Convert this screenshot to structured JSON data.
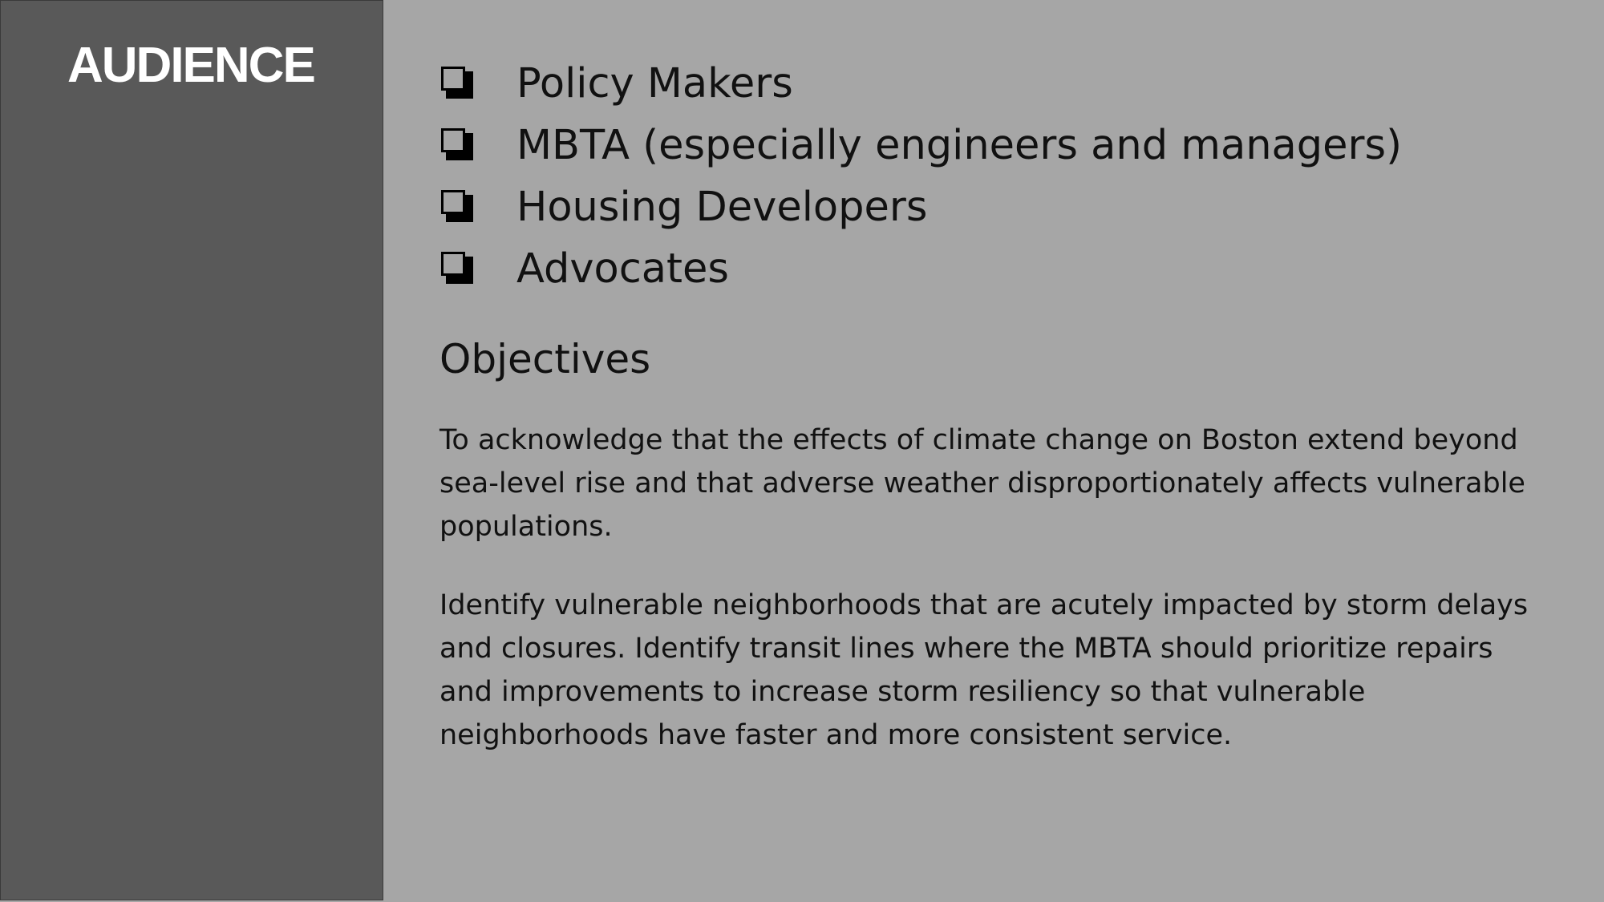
{
  "sidebar": {
    "title": "AUDIENCE"
  },
  "audience": {
    "items": [
      {
        "label": "Policy Makers",
        "icon": "checkbox-icon"
      },
      {
        "label": "MBTA (especially engineers and managers)",
        "icon": "checkbox-icon"
      },
      {
        "label": "Housing Developers",
        "icon": "checkbox-icon"
      },
      {
        "label": "Advocates",
        "icon": "checkbox-icon"
      }
    ]
  },
  "objectives": {
    "heading": "Objectives",
    "paragraphs": [
      "To acknowledge that the effects of climate change on Boston extend beyond sea-level rise and that adverse weather disproportionately affects vulnerable populations.",
      "Identify vulnerable neighborhoods that are acutely impacted by storm delays and closures. Identify transit lines where the MBTA should prioritize repairs and improvements to increase storm resiliency so that vulnerable neighborhoods have faster and more consistent service."
    ]
  },
  "colors": {
    "sidebar_bg": "#595959",
    "page_bg": "#a6a6a6",
    "title_text": "#ffffff",
    "body_text": "#111111"
  }
}
